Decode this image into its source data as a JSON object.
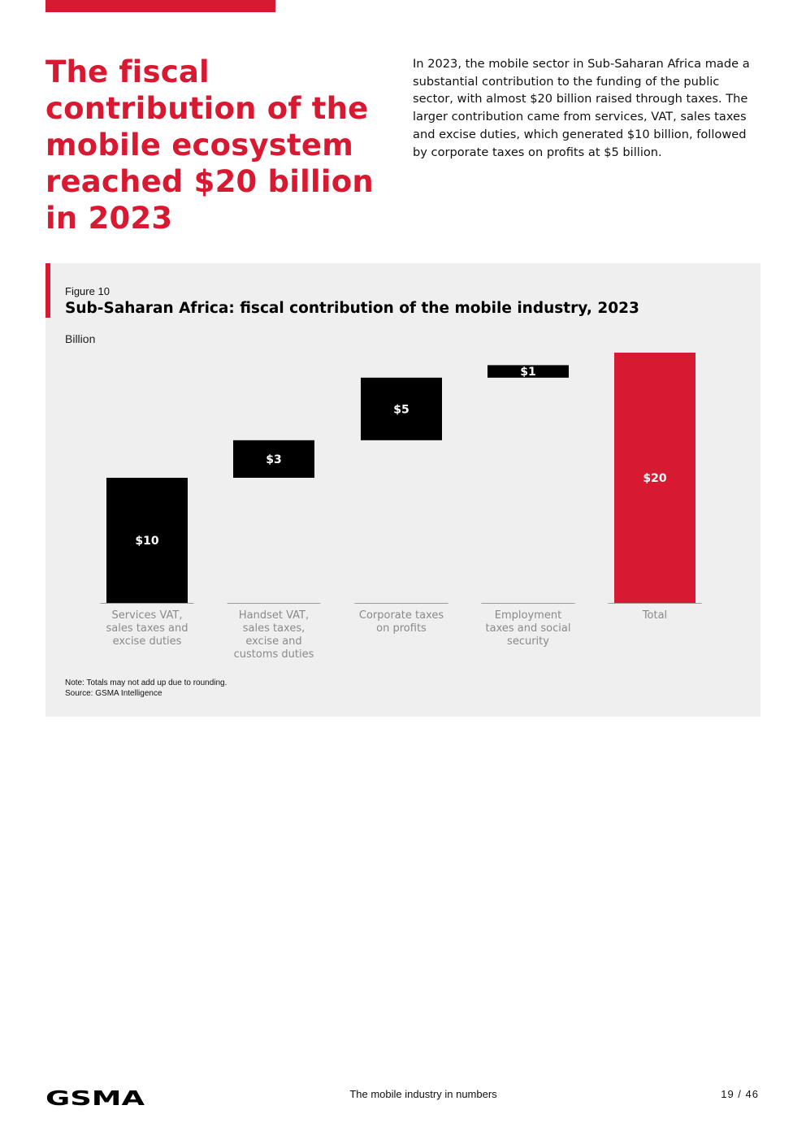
{
  "page": {
    "headline": "The fiscal contribution of the mobile ecosystem reached $20 billion in 2023",
    "intro": "In 2023, the mobile sector in Sub-Saharan Africa made a substantial contribution to the funding of the public sector, with almost $20 billion raised through taxes. The larger contribution came from services, VAT, sales taxes and excise duties, which generated $10 billion, followed by corporate taxes on profits at $5 billion."
  },
  "figure": {
    "label": "Figure 10",
    "title": "Sub-Saharan Africa: fiscal contribution of the mobile industry, 2023",
    "unit": "Billion",
    "note": "Note: Totals may not add up due to rounding.",
    "source": "Source: GSMA Intelligence"
  },
  "chart_data": {
    "type": "bar",
    "subtype": "waterfall",
    "title": "Sub-Saharan Africa: fiscal contribution of the mobile industry, 2023",
    "ylabel": "Billion",
    "categories": [
      [
        "Services VAT,",
        "sales taxes and",
        "excise duties"
      ],
      [
        "Handset VAT,",
        "sales taxes,",
        "excise and",
        "customs duties"
      ],
      [
        "Corporate taxes",
        "on profits"
      ],
      [
        "Employment",
        "taxes and social",
        "security"
      ],
      [
        "Total"
      ]
    ],
    "values": [
      10,
      3,
      5,
      1,
      20
    ],
    "labels": [
      "$10",
      "$3",
      "$5",
      "$1",
      "$20"
    ],
    "colors": [
      "#000000",
      "#000000",
      "#000000",
      "#000000",
      "#d71931"
    ],
    "ylim": [
      0,
      20
    ],
    "grid": false
  },
  "footer": {
    "logo_text": "GSMA",
    "center_text": "The mobile industry in numbers",
    "page_number": "19 / 46"
  }
}
